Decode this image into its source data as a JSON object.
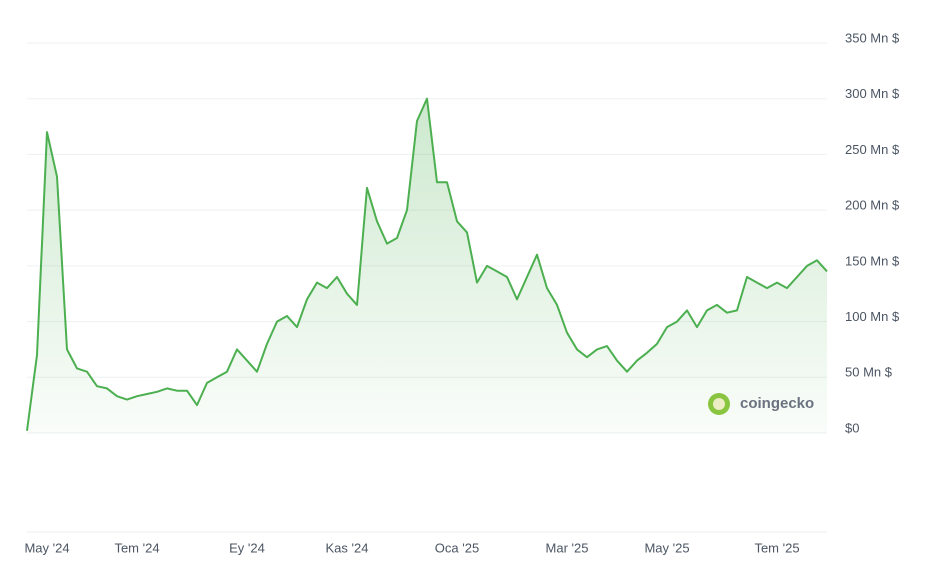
{
  "chart_data": {
    "type": "area",
    "watermark": "coingecko",
    "categories": [
      null,
      null,
      "May '24",
      null,
      null,
      null,
      null,
      null,
      null,
      null,
      null,
      "Tem '24",
      null,
      null,
      null,
      null,
      null,
      null,
      null,
      null,
      null,
      null,
      "Ey '24",
      null,
      null,
      null,
      null,
      null,
      null,
      null,
      null,
      null,
      "Kas '24",
      null,
      null,
      null,
      null,
      null,
      null,
      null,
      null,
      null,
      null,
      "Oca '25",
      null,
      null,
      null,
      null,
      null,
      null,
      null,
      null,
      null,
      null,
      "Mar '25",
      null,
      null,
      null,
      null,
      null,
      null,
      null,
      null,
      null,
      "May '25",
      null,
      null,
      null,
      null,
      null,
      null,
      null,
      null,
      null,
      null,
      "Tem '25",
      null,
      null,
      null,
      null,
      null
    ],
    "series": [
      {
        "color": "#4caf50",
        "values": [
          2,
          70,
          270,
          230,
          75,
          58,
          55,
          42,
          40,
          33,
          30,
          33,
          35,
          37,
          40,
          38,
          38,
          25,
          45,
          50,
          55,
          75,
          65,
          55,
          80,
          100,
          105,
          95,
          120,
          135,
          130,
          140,
          125,
          115,
          220,
          190,
          170,
          175,
          200,
          280,
          300,
          225,
          225,
          190,
          180,
          135,
          150,
          145,
          140,
          120,
          140,
          160,
          130,
          115,
          90,
          75,
          68,
          75,
          78,
          65,
          55,
          65,
          72,
          80,
          95,
          100,
          110,
          95,
          110,
          115,
          108,
          110,
          140,
          135,
          130,
          135,
          130,
          140,
          150,
          155,
          145
        ]
      }
    ],
    "ylim": [
      0,
      350
    ],
    "yticks": [
      {
        "value": 0,
        "label": "$0"
      },
      {
        "value": 50,
        "label": "50 Mn $"
      },
      {
        "value": 100,
        "label": "100 Mn $"
      },
      {
        "value": 150,
        "label": "150 Mn $"
      },
      {
        "value": 200,
        "label": "200 Mn $"
      },
      {
        "value": 250,
        "label": "250 Mn $"
      },
      {
        "value": 300,
        "label": "300 Mn $"
      },
      {
        "value": 350,
        "label": "350 Mn $"
      }
    ],
    "grid": true
  }
}
